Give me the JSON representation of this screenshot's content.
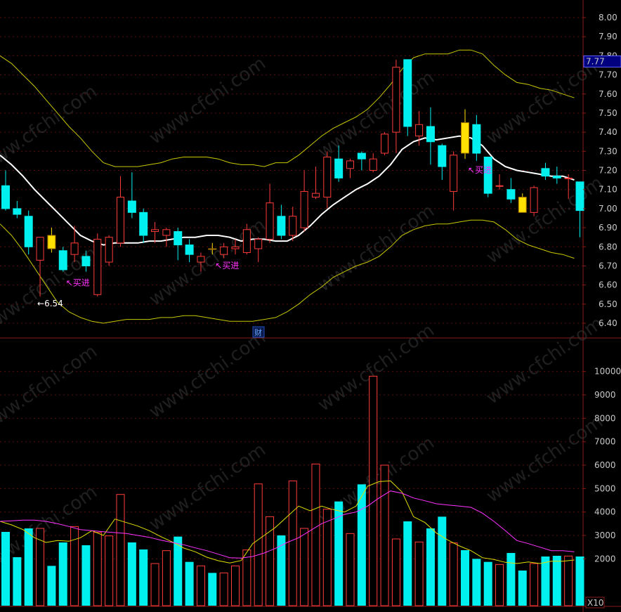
{
  "chart_data": [
    {
      "type": "candlestick",
      "panel": "price",
      "y_ticks": [
        "8.00",
        "7.90",
        "7.80",
        "7.70",
        "7.60",
        "7.50",
        "7.40",
        "7.30",
        "7.20",
        "7.10",
        "7.00",
        "6.90",
        "6.80",
        "6.70",
        "6.60",
        "6.50",
        "6.40"
      ],
      "ylim": [
        6.36,
        8.06
      ],
      "current_price": "7.77",
      "low_marker": "←6.54",
      "finance_marker": "财",
      "candles": [
        {
          "o": 7.12,
          "h": 7.2,
          "l": 6.99,
          "c": 7.0
        },
        {
          "o": 7.0,
          "h": 7.04,
          "l": 6.95,
          "c": 6.97
        },
        {
          "o": 6.96,
          "h": 6.99,
          "l": 6.76,
          "c": 6.8
        },
        {
          "o": 6.73,
          "h": 6.84,
          "l": 6.54,
          "c": 6.85
        },
        {
          "o": 6.86,
          "h": 6.9,
          "l": 6.77,
          "c": 6.79
        },
        {
          "o": 6.78,
          "h": 6.8,
          "l": 6.67,
          "c": 6.68
        },
        {
          "o": 6.76,
          "h": 6.91,
          "l": 6.72,
          "c": 6.82
        },
        {
          "o": 6.75,
          "h": 6.78,
          "l": 6.67,
          "c": 6.7
        },
        {
          "o": 6.55,
          "h": 6.87,
          "l": 6.54,
          "c": 6.84
        },
        {
          "o": 6.72,
          "h": 6.86,
          "l": 6.7,
          "c": 6.85
        },
        {
          "o": 6.82,
          "h": 7.17,
          "l": 6.8,
          "c": 7.06
        },
        {
          "o": 7.04,
          "h": 7.19,
          "l": 6.95,
          "c": 6.98
        },
        {
          "o": 6.98,
          "h": 7.0,
          "l": 6.82,
          "c": 6.86
        },
        {
          "o": 6.88,
          "h": 6.93,
          "l": 6.82,
          "c": 6.89
        },
        {
          "o": 6.86,
          "h": 6.9,
          "l": 6.8,
          "c": 6.89
        },
        {
          "o": 6.88,
          "h": 6.9,
          "l": 6.73,
          "c": 6.81
        },
        {
          "o": 6.81,
          "h": 6.84,
          "l": 6.72,
          "c": 6.76
        },
        {
          "o": 6.72,
          "h": 6.77,
          "l": 6.67,
          "c": 6.75
        },
        {
          "o": 6.79,
          "h": 6.82,
          "l": 6.76,
          "c": 6.79
        },
        {
          "o": 6.76,
          "h": 6.82,
          "l": 6.74,
          "c": 6.8
        },
        {
          "o": 6.79,
          "h": 6.84,
          "l": 6.76,
          "c": 6.8
        },
        {
          "o": 6.77,
          "h": 6.92,
          "l": 6.76,
          "c": 6.89
        },
        {
          "o": 6.79,
          "h": 6.85,
          "l": 6.72,
          "c": 6.84
        },
        {
          "o": 6.84,
          "h": 7.13,
          "l": 6.82,
          "c": 7.03
        },
        {
          "o": 6.96,
          "h": 7.02,
          "l": 6.84,
          "c": 6.86
        },
        {
          "o": 6.86,
          "h": 7.01,
          "l": 6.83,
          "c": 6.96
        },
        {
          "o": 6.9,
          "h": 7.2,
          "l": 6.88,
          "c": 7.09
        },
        {
          "o": 7.06,
          "h": 7.22,
          "l": 7.05,
          "c": 7.08
        },
        {
          "o": 7.06,
          "h": 7.3,
          "l": 7.0,
          "c": 7.27
        },
        {
          "o": 7.26,
          "h": 7.33,
          "l": 7.14,
          "c": 7.16
        },
        {
          "o": 7.21,
          "h": 7.26,
          "l": 7.16,
          "c": 7.25
        },
        {
          "o": 7.29,
          "h": 7.3,
          "l": 7.2,
          "c": 7.26
        },
        {
          "o": 7.2,
          "h": 7.29,
          "l": 7.19,
          "c": 7.26
        },
        {
          "o": 7.29,
          "h": 7.4,
          "l": 7.28,
          "c": 7.39
        },
        {
          "o": 7.4,
          "h": 7.78,
          "l": 7.29,
          "c": 7.74
        },
        {
          "o": 7.78,
          "h": 7.78,
          "l": 7.38,
          "c": 7.43
        },
        {
          "o": 7.38,
          "h": 7.51,
          "l": 7.33,
          "c": 7.44
        },
        {
          "o": 7.43,
          "h": 7.53,
          "l": 7.23,
          "c": 7.35
        },
        {
          "o": 7.33,
          "h": 7.34,
          "l": 7.15,
          "c": 7.22
        },
        {
          "o": 7.09,
          "h": 7.3,
          "l": 6.99,
          "c": 7.28
        },
        {
          "o": 7.45,
          "h": 7.52,
          "l": 7.26,
          "c": 7.29
        },
        {
          "o": 7.44,
          "h": 7.49,
          "l": 7.25,
          "c": 7.29
        },
        {
          "o": 7.27,
          "h": 7.27,
          "l": 7.06,
          "c": 7.08
        },
        {
          "o": 7.12,
          "h": 7.18,
          "l": 7.1,
          "c": 7.12
        },
        {
          "o": 7.1,
          "h": 7.16,
          "l": 7.03,
          "c": 7.05
        },
        {
          "o": 7.06,
          "h": 7.08,
          "l": 6.98,
          "c": 6.98
        },
        {
          "o": 6.98,
          "h": 7.12,
          "l": 6.96,
          "c": 7.11
        },
        {
          "o": 7.21,
          "h": 7.24,
          "l": 7.15,
          "c": 7.17
        },
        {
          "o": 7.17,
          "h": 7.22,
          "l": 7.13,
          "c": 7.16
        },
        {
          "o": 7.16,
          "h": 7.18,
          "l": 7.05,
          "c": 7.16
        },
        {
          "o": 7.14,
          "h": 7.14,
          "l": 6.85,
          "c": 6.99
        }
      ],
      "yellow_candles": [
        4,
        18,
        40,
        45
      ],
      "ma_white": [
        7.28,
        7.23,
        7.17,
        7.1,
        7.04,
        6.98,
        6.92,
        6.86,
        6.83,
        6.81,
        6.82,
        6.82,
        6.82,
        6.83,
        6.83,
        6.84,
        6.85,
        6.85,
        6.86,
        6.86,
        6.85,
        6.83,
        6.84,
        6.84,
        6.83,
        6.83,
        6.86,
        6.91,
        6.97,
        7.02,
        7.06,
        7.1,
        7.13,
        7.17,
        7.23,
        7.31,
        7.35,
        7.37,
        7.36,
        7.37,
        7.38,
        7.37,
        7.33,
        7.26,
        7.22,
        7.2,
        7.19,
        7.18,
        7.17,
        7.17,
        7.15
      ],
      "upper_band": [
        7.8,
        7.76,
        7.7,
        7.64,
        7.57,
        7.5,
        7.43,
        7.37,
        7.3,
        7.24,
        7.22,
        7.22,
        7.22,
        7.23,
        7.24,
        7.26,
        7.27,
        7.27,
        7.27,
        7.26,
        7.24,
        7.23,
        7.23,
        7.22,
        7.24,
        7.24,
        7.28,
        7.33,
        7.38,
        7.42,
        7.45,
        7.48,
        7.52,
        7.58,
        7.65,
        7.73,
        7.79,
        7.81,
        7.81,
        7.81,
        7.83,
        7.83,
        7.81,
        7.75,
        7.7,
        7.66,
        7.65,
        7.63,
        7.62,
        7.6,
        7.58
      ],
      "lower_band": [
        6.92,
        6.86,
        6.78,
        6.69,
        6.6,
        6.51,
        6.46,
        6.43,
        6.41,
        6.4,
        6.41,
        6.42,
        6.42,
        6.42,
        6.43,
        6.43,
        6.44,
        6.44,
        6.43,
        6.42,
        6.41,
        6.41,
        6.41,
        6.42,
        6.43,
        6.46,
        6.5,
        6.55,
        6.59,
        6.64,
        6.67,
        6.7,
        6.72,
        6.75,
        6.8,
        6.86,
        6.89,
        6.91,
        6.92,
        6.92,
        6.93,
        6.94,
        6.94,
        6.93,
        6.89,
        6.84,
        6.81,
        6.79,
        6.77,
        6.76,
        6.74
      ],
      "signals": [
        {
          "index": 5,
          "label": "↖买进"
        },
        {
          "index": 18,
          "label": "↖买进"
        },
        {
          "index": 40,
          "label": "↖买进"
        }
      ]
    },
    {
      "type": "bar",
      "panel": "volume",
      "y_ticks": [
        "10000",
        "9000",
        "8000",
        "7000",
        "6000",
        "5000",
        "4000",
        "3000",
        "2000"
      ],
      "ylim": [
        0,
        11000
      ],
      "unit_label": "X10",
      "volumes": [
        3150,
        2070,
        3300,
        3300,
        1700,
        2700,
        3380,
        2580,
        3130,
        2980,
        4750,
        2700,
        2400,
        1800,
        2350,
        2950,
        1870,
        1700,
        1400,
        1400,
        1700,
        2380,
        5200,
        3800,
        3000,
        5330,
        3300,
        6050,
        4120,
        4450,
        3080,
        5180,
        9800,
        6000,
        2850,
        3600,
        2720,
        3300,
        3800,
        2680,
        2370,
        2000,
        1870,
        1760,
        2250,
        1500,
        1800,
        2100,
        2130,
        2120,
        2100
      ],
      "ma_yellow": [
        3600,
        3450,
        3250,
        2900,
        2700,
        2780,
        2750,
        2900,
        3200,
        3000,
        3700,
        3550,
        3400,
        3200,
        2950,
        2720,
        2460,
        2300,
        2070,
        1920,
        1820,
        1930,
        2650,
        3000,
        3350,
        3800,
        4250,
        4050,
        4250,
        4100,
        4000,
        4250,
        5100,
        5300,
        5330,
        4850,
        3800,
        3550,
        3100,
        2800,
        2550,
        2350,
        2050,
        1970,
        1850,
        1800,
        1870,
        1800,
        1900,
        1900,
        1950
      ],
      "ma_magenta": [
        3600,
        3620,
        3650,
        3650,
        3600,
        3500,
        3380,
        3250,
        3200,
        3160,
        3120,
        3080,
        3000,
        2920,
        2800,
        2700,
        2600,
        2470,
        2350,
        2200,
        2050,
        2030,
        2100,
        2250,
        2450,
        2700,
        2900,
        3200,
        3500,
        3700,
        3900,
        4000,
        4250,
        4600,
        4900,
        4800,
        4600,
        4480,
        4350,
        4300,
        4250,
        4200,
        3950,
        3600,
        3200,
        2780,
        2650,
        2500,
        2350,
        2350,
        2300
      ]
    }
  ],
  "watermark": "www.cfchi.com"
}
